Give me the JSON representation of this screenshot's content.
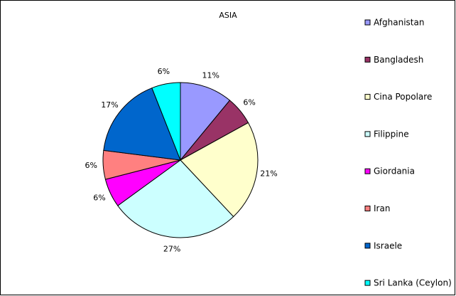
{
  "chart_data": {
    "type": "pie",
    "title": "ASIA",
    "categories": [
      "Afghanistan",
      "Bangladesh",
      "Cina Popolare",
      "Filippine",
      "Giordania",
      "Iran",
      "Israele",
      "Sri Lanka (Ceylon)"
    ],
    "values": [
      11,
      6,
      21,
      27,
      6,
      6,
      17,
      6
    ],
    "value_labels": [
      "11%",
      "6%",
      "21%",
      "27%",
      "6%",
      "6%",
      "17%",
      "6%"
    ],
    "colors": [
      "#9999ff",
      "#993366",
      "#ffffcc",
      "#ccffff",
      "#ff00ff",
      "#ff8080",
      "#0066cc",
      "#00ffff"
    ],
    "legend": "right"
  }
}
